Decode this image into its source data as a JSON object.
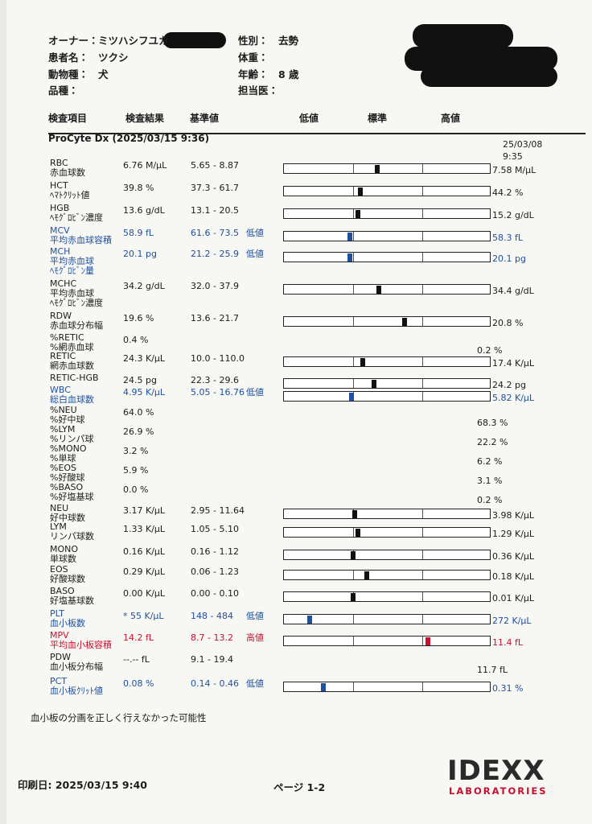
{
  "header": {
    "fields": [
      {
        "label": "オーナー：",
        "value": "ミツハシフユカ"
      },
      {
        "label": "性別：",
        "value": "去勢"
      },
      {
        "label": "患者名：",
        "value": "ツクシ"
      },
      {
        "label": "体重："
      },
      {
        "label": "動物種：",
        "value": "犬"
      },
      {
        "label": "年齢：",
        "value": "8 歳"
      },
      {
        "label": "品種："
      },
      {
        "label": "担当医："
      }
    ]
  },
  "columns": [
    "検査項目",
    "検査結果",
    "基準値",
    "低値",
    "標準",
    "高値"
  ],
  "section": {
    "title": "ProCyte Dx (2025/03/15 9:36)",
    "prev_date": "25/03/08",
    "prev_time": "9:35"
  },
  "rows": [
    {
      "name": "RBC",
      "sub": [
        "赤血球数"
      ],
      "result": "6.76 M/µL",
      "range": "5.65 - 8.87",
      "prev": "7.58 M/µL"
    },
    {
      "name": "HCT",
      "sub": [
        "ﾍﾏﾄｸﾘｯﾄ値"
      ],
      "result": "39.8 %",
      "range": "37.3 - 61.7",
      "prev": "44.2 %"
    },
    {
      "name": "HGB",
      "sub": [
        "ﾍﾓｸﾞﾛﾋﾞﾝ濃度"
      ],
      "result": "13.6 g/dL",
      "range": "13.1 - 20.5",
      "prev": "15.2 g/dL"
    },
    {
      "name": "MCV",
      "sub": [
        "平均赤血球容積"
      ],
      "result": "58.9 fL",
      "range": "61.6 - 73.5",
      "flag": "低値",
      "color": "#1f4f9e",
      "prev": "58.3 fL"
    },
    {
      "name": "MCH",
      "sub": [
        "平均赤血球",
        "ﾍﾓｸﾞﾛﾋﾞﾝ量"
      ],
      "result": "20.1 pg",
      "range": "21.2 - 25.9",
      "flag": "低値",
      "color": "#1f4f9e",
      "prev": "20.1 pg"
    },
    {
      "name": "MCHC",
      "sub": [
        "平均赤血球",
        "ﾍﾓｸﾞﾛﾋﾞﾝ濃度"
      ],
      "result": "34.2 g/dL",
      "range": "32.0 - 37.9",
      "prev": "34.4 g/dL"
    },
    {
      "name": "RDW",
      "sub": [
        "赤血球分布幅"
      ],
      "result": "19.6 %",
      "range": "13.6 - 21.7",
      "prev": "20.8 %"
    },
    {
      "name": "%RETIC",
      "sub": [
        "%網赤血球"
      ],
      "result": "0.4 %",
      "prev": "0.2 %"
    },
    {
      "name": "RETIC",
      "sub": [
        "網赤血球数"
      ],
      "result": "24.3 K/µL",
      "range": "10.0 - 110.0",
      "prev": "17.4 K/µL"
    },
    {
      "name": "RETIC-HGB",
      "sub": [],
      "result": "24.5 pg",
      "range": "22.3 - 29.6",
      "prev": "24.2 pg"
    },
    {
      "name": "WBC",
      "sub": [
        "総白血球数"
      ],
      "result": "4.95 K/µL",
      "range": "5.05 - 16.76",
      "flag": "低値",
      "color": "#1f4f9e",
      "prev": "5.82 K/µL"
    },
    {
      "name": "%NEU",
      "sub": [
        "%好中球"
      ],
      "result": "64.0 %",
      "prev": "68.3 %"
    },
    {
      "name": "%LYM",
      "sub": [
        "%リンパ球"
      ],
      "result": "26.9 %",
      "prev": "22.2 %"
    },
    {
      "name": "%MONO",
      "sub": [
        "%単球"
      ],
      "result": "3.2 %",
      "prev": "6.2 %"
    },
    {
      "name": "%EOS",
      "sub": [
        "%好酸球"
      ],
      "result": "5.9 %",
      "prev": "3.1 %"
    },
    {
      "name": "%BASO",
      "sub": [
        "%好塩基球"
      ],
      "result": "0.0 %",
      "prev": "0.2 %"
    },
    {
      "name": "NEU",
      "sub": [
        "好中球数"
      ],
      "result": "3.17 K/µL",
      "range": "2.95 - 11.64",
      "prev": "3.98 K/µL"
    },
    {
      "name": "LYM",
      "sub": [
        "リンパ球数"
      ],
      "result": "1.33 K/µL",
      "range": "1.05 - 5.10",
      "prev": "1.29 K/µL"
    },
    {
      "name": "MONO",
      "sub": [
        "単球数"
      ],
      "result": "0.16 K/µL",
      "range": "0.16 - 1.12",
      "prev": "0.36 K/µL"
    },
    {
      "name": "EOS",
      "sub": [
        "好酸球数"
      ],
      "result": "0.29 K/µL",
      "range": "0.06 - 1.23",
      "prev": "0.18 K/µL"
    },
    {
      "name": "BASO",
      "sub": [
        "好塩基球数"
      ],
      "result": "0.00 K/µL",
      "range": "0.00 - 0.10",
      "prev": "0.01 K/µL"
    },
    {
      "name": "PLT",
      "sub": [
        "血小板数"
      ],
      "result": "* 55 K/µL",
      "range": "148 - 484",
      "flag": "低値",
      "color": "#1f4f9e",
      "prev": "272 K/µL"
    },
    {
      "name": "MPV",
      "sub": [
        "平均血小板容積"
      ],
      "result": "14.2 fL",
      "range": "8.7 - 13.2",
      "flag": "高値",
      "color": "#c8102e",
      "prev": "11.4 fL"
    },
    {
      "name": "PDW",
      "sub": [
        "血小板分布幅"
      ],
      "result": "--.-- fL",
      "range": "9.1 - 19.4",
      "prev": "11.7 fL"
    },
    {
      "name": "PCT",
      "sub": [
        "血小板ｸﾘｯﾄ値"
      ],
      "result": "0.08 %",
      "range": "0.14 - 0.46",
      "flag": "低値",
      "color": "#1f4f9e",
      "prev": "0.31 %"
    }
  ],
  "note": "血小板の分画を正しく行えなかった可能性",
  "footer": {
    "printed": "印刷日: 2025/03/15 9:40",
    "page": "ページ 1-2",
    "logo": "IDEXX",
    "logo_sub": "LABORATORIES"
  }
}
